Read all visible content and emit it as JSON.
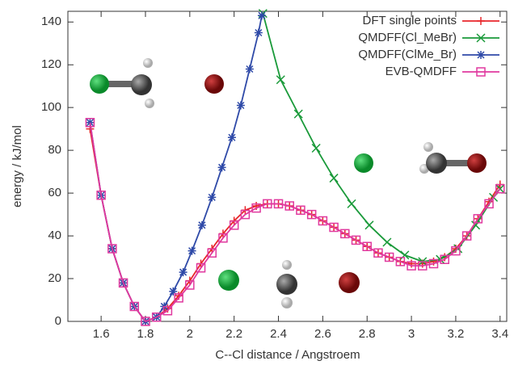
{
  "chart_data": {
    "type": "line",
    "xlabel": "C--Cl distance / Angstroem",
    "ylabel": "energy / kJ/mol",
    "xlim": [
      1.45,
      3.43
    ],
    "ylim": [
      0,
      145
    ],
    "xticks": [
      1.6,
      1.8,
      2,
      2.2,
      2.4,
      2.6,
      2.8,
      3,
      3.2,
      3.4
    ],
    "yticks": [
      0,
      20,
      40,
      60,
      80,
      100,
      120,
      140
    ],
    "legend": "top-right",
    "series": [
      {
        "name": "DFT single points",
        "color": "#e8262b",
        "marker": "plus",
        "x": [
          1.55,
          1.6,
          1.65,
          1.7,
          1.75,
          1.8,
          1.85,
          1.9,
          1.95,
          2.0,
          2.05,
          2.1,
          2.15,
          2.2,
          2.25,
          2.3,
          2.35,
          2.4,
          2.45,
          2.5,
          2.55,
          2.6,
          2.65,
          2.7,
          2.75,
          2.8,
          2.85,
          2.9,
          2.95,
          3.0,
          3.05,
          3.1,
          3.15,
          3.2,
          3.25,
          3.3,
          3.35,
          3.4
        ],
        "values": [
          90,
          59,
          34,
          18,
          7,
          0,
          2,
          6,
          12,
          19,
          27,
          34,
          41,
          47,
          52,
          54,
          55,
          55,
          54,
          52,
          50,
          47,
          44,
          41,
          38,
          35,
          32,
          30,
          28,
          27,
          27,
          28,
          30,
          34,
          40,
          48,
          56,
          64
        ]
      },
      {
        "name": "QMDFF(Cl_MeBr)",
        "color": "#1a9a3a",
        "marker": "x",
        "x": [
          2.33,
          2.41,
          2.49,
          2.57,
          2.65,
          2.73,
          2.81,
          2.89,
          2.97,
          3.05,
          3.13,
          3.21,
          3.29,
          3.37,
          3.4
        ],
        "values": [
          144,
          113,
          97,
          81,
          67,
          55,
          45,
          37,
          31,
          28,
          29,
          34,
          45,
          58,
          62
        ]
      },
      {
        "name": "QMDFF(ClMe_Br)",
        "color": "#2f4aa8",
        "marker": "star",
        "x": [
          1.55,
          1.6,
          1.65,
          1.7,
          1.75,
          1.8,
          1.85,
          1.885,
          1.925,
          1.97,
          2.01,
          2.055,
          2.1,
          2.145,
          2.19,
          2.23,
          2.27,
          2.31,
          2.325
        ],
        "values": [
          93,
          59,
          34,
          18,
          7,
          0,
          2,
          7,
          14,
          23,
          33,
          45,
          58,
          72,
          86,
          101,
          118,
          135,
          143
        ]
      },
      {
        "name": "EVB-QMDFF",
        "color": "#e0399f",
        "marker": "square",
        "x": [
          1.55,
          1.6,
          1.65,
          1.7,
          1.75,
          1.8,
          1.85,
          1.9,
          1.95,
          2.0,
          2.05,
          2.1,
          2.15,
          2.2,
          2.25,
          2.3,
          2.35,
          2.4,
          2.45,
          2.5,
          2.55,
          2.6,
          2.65,
          2.7,
          2.75,
          2.8,
          2.85,
          2.9,
          2.95,
          3.0,
          3.05,
          3.1,
          3.15,
          3.2,
          3.25,
          3.3,
          3.35,
          3.4
        ],
        "values": [
          93,
          59,
          34,
          18,
          7,
          0,
          2,
          5,
          11,
          17,
          25,
          32,
          39,
          45,
          50,
          53,
          55,
          55,
          54,
          52,
          50,
          47,
          44,
          41,
          38,
          35,
          32,
          30,
          28,
          26,
          26,
          27,
          29,
          33,
          40,
          48,
          55,
          62
        ]
      }
    ]
  }
}
